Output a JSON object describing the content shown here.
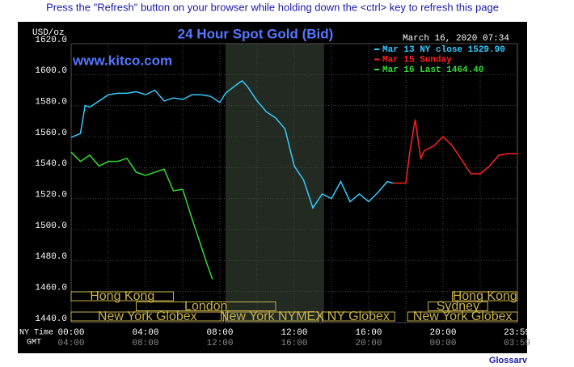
{
  "page": {
    "notice": "Press the \"Refresh\" button on your browser while holding down the <ctrl> key to refresh this page",
    "footer_link": "Glossary"
  },
  "chart_data": {
    "type": "line",
    "title": "24 Hour Spot Gold (Bid)",
    "watermark": "www.kitco.com",
    "y_label": "USD/oz",
    "timestamp": "March 16, 2020 07:34",
    "x_row_labels": [
      "NY Time",
      "GMT"
    ],
    "xlim": [
      0,
      24
    ],
    "xticks": [
      {
        "value": 0,
        "label": "00:00"
      },
      {
        "value": 4,
        "label": "04:00"
      },
      {
        "value": 8,
        "label": "08:00"
      },
      {
        "value": 12,
        "label": "12:00"
      },
      {
        "value": 16,
        "label": "16:00"
      },
      {
        "value": 20,
        "label": "20:00"
      },
      {
        "value": 23.983,
        "label": "23:59"
      }
    ],
    "x_gmt_labels": [
      "04:00",
      "08:00",
      "12:00",
      "16:00",
      "20:00",
      "00:00",
      "03:59"
    ],
    "xminor": [
      2,
      6,
      10,
      14,
      18,
      22
    ],
    "ylim": [
      1440,
      1620
    ],
    "yticks": [
      {
        "value": 1440,
        "label": "1440.0"
      },
      {
        "value": 1460,
        "label": "1460.0"
      },
      {
        "value": 1480,
        "label": "1480.0"
      },
      {
        "value": 1500,
        "label": "1500.0"
      },
      {
        "value": 1520,
        "label": "1520.0"
      },
      {
        "value": 1540,
        "label": "1540.0"
      },
      {
        "value": 1560,
        "label": "1560.0"
      },
      {
        "value": 1580,
        "label": "1580.0"
      },
      {
        "value": 1600,
        "label": "1600.0"
      },
      {
        "value": 1620,
        "label": "1620.0"
      }
    ],
    "grid": true,
    "shaded_hours": [
      8.3,
      13.6
    ],
    "sessions": [
      {
        "label": "Hong Kong",
        "start": 0,
        "end": 5.5,
        "row": 0
      },
      {
        "label": "London",
        "start": 3.5,
        "end": 11,
        "row": 1
      },
      {
        "label": "New York Globex",
        "start": 0,
        "end": 8.2,
        "row": 2
      },
      {
        "label": "New York NYMEX",
        "start": 8.3,
        "end": 13.3,
        "row": 2
      },
      {
        "label": "NY Globex",
        "start": 13.5,
        "end": 17.4,
        "row": 2
      },
      {
        "label": "Hong Kong",
        "start": 20.5,
        "end": 24,
        "row": 0
      },
      {
        "label": "Sydney",
        "start": 19.2,
        "end": 22.4,
        "row": 1
      },
      {
        "label": "New York Globex",
        "start": 18.1,
        "end": 24,
        "row": 2
      }
    ],
    "series": [
      {
        "name": "Mar 13 NY close 1529.90",
        "color": "#33ccff",
        "x": [
          0,
          0.5,
          0.75,
          1,
          1.5,
          2,
          2.5,
          3,
          3.5,
          4,
          4.5,
          5,
          5.5,
          6,
          6.5,
          7,
          7.5,
          8,
          8.3,
          9,
          9.2,
          9.5,
          10,
          10.5,
          11,
          11.5,
          12,
          12.5,
          13,
          13.5,
          14,
          14.5,
          15,
          15.5,
          16,
          16.5,
          17,
          17.3
        ],
        "values": [
          1559.5,
          1562,
          1580,
          1579,
          1583,
          1587,
          1588,
          1588,
          1589,
          1587,
          1590,
          1583,
          1585,
          1584,
          1587,
          1587,
          1586,
          1582,
          1588,
          1594.5,
          1596,
          1592,
          1583,
          1576,
          1572,
          1565,
          1541,
          1532,
          1514,
          1523,
          1520,
          1531,
          1518,
          1523,
          1518,
          1524,
          1531,
          1530
        ]
      },
      {
        "name": "Mar 15 Sunday",
        "color": "#ff2020",
        "x": [
          17.3,
          18,
          18.2,
          18.5,
          18.8,
          19,
          19.5,
          20,
          20.5,
          21,
          21.5,
          22,
          22.5,
          23,
          23.5,
          24
        ],
        "values": [
          1530,
          1530,
          1549,
          1571,
          1546,
          1551,
          1554,
          1560,
          1554,
          1545,
          1536,
          1536,
          1541,
          1548,
          1549,
          1549
        ]
      },
      {
        "name": "Mar 16 Last 1464.40",
        "color": "#33dd33",
        "x": [
          0,
          0.5,
          1,
          1.5,
          2,
          2.5,
          3,
          3.5,
          4,
          4.5,
          5,
          5.5,
          6,
          6.5,
          7,
          7.3,
          7.6
        ],
        "values": [
          1550,
          1544,
          1548,
          1541,
          1544,
          1544,
          1546,
          1537,
          1535,
          1537,
          1539,
          1525,
          1526,
          1507,
          1489,
          1478,
          1468
        ]
      }
    ]
  }
}
